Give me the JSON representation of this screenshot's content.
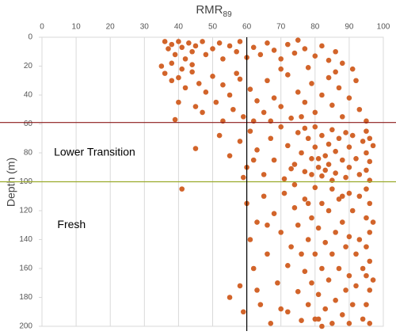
{
  "chart_data": {
    "type": "scatter",
    "title": {
      "main": "RMR",
      "sub": "89"
    },
    "y_label": "Depth (m)",
    "annotations": [
      {
        "text": "Lower Transition",
        "x": 3.5,
        "y": 80
      },
      {
        "text": "Fresh",
        "x": 4.5,
        "y": 130
      }
    ],
    "color": "#d2642a",
    "xlim": [
      0,
      100
    ],
    "xticks": [
      0,
      10,
      20,
      30,
      40,
      50,
      60,
      70,
      80,
      90,
      100
    ],
    "ylim": [
      0,
      200
    ],
    "yticks": [
      0,
      20,
      40,
      60,
      80,
      100,
      120,
      140,
      160,
      180,
      200
    ],
    "y_inverted": true,
    "x_axis_top": true,
    "grid": "x",
    "hlines": [
      {
        "value": 59,
        "color": "#8b1a1a"
      },
      {
        "value": 100,
        "color": "#9aaa2a"
      }
    ],
    "vlines": [
      {
        "value": 60,
        "color": "#000000"
      }
    ],
    "x": [
      36,
      37,
      38,
      39,
      40,
      41,
      42,
      43,
      44,
      45,
      47,
      48,
      50,
      52,
      53,
      55,
      57,
      58,
      60,
      62,
      64,
      66,
      68,
      70,
      72,
      74,
      75,
      77,
      80,
      82,
      84,
      86,
      88,
      35,
      38,
      41,
      44,
      36,
      38,
      40,
      42,
      44,
      46,
      48,
      50,
      51,
      53,
      55,
      56,
      58,
      59,
      61,
      63,
      65,
      66,
      68,
      70,
      72,
      73,
      75,
      77,
      79,
      80,
      82,
      84,
      85,
      87,
      88,
      90,
      92,
      93,
      95,
      39,
      47,
      53,
      62,
      70,
      78,
      86,
      91,
      40,
      45,
      57,
      67,
      76,
      45,
      52,
      55,
      58,
      60,
      61,
      63,
      65,
      67,
      68,
      70,
      71,
      72,
      74,
      75,
      76,
      77,
      78,
      79,
      80,
      80,
      81,
      82,
      82,
      83,
      84,
      84,
      85,
      86,
      86,
      87,
      88,
      89,
      89,
      90,
      90,
      91,
      92,
      93,
      94,
      95,
      95,
      95,
      96,
      96,
      96,
      97,
      81,
      83,
      85,
      79,
      77,
      73,
      62,
      59,
      41,
      55,
      58,
      59,
      60,
      61,
      62,
      63,
      64,
      65,
      66,
      67,
      68,
      69,
      70,
      71,
      72,
      72,
      73,
      74,
      75,
      75,
      76,
      77,
      77,
      78,
      78,
      79,
      79,
      80,
      80,
      80,
      81,
      81,
      82,
      82,
      83,
      83,
      84,
      84,
      85,
      85,
      85,
      86,
      86,
      87,
      87,
      88,
      88,
      89,
      89,
      90,
      90,
      90,
      90,
      91,
      91,
      92,
      92,
      93,
      93,
      94,
      94,
      95,
      95,
      95,
      95,
      95,
      96,
      96,
      96,
      96,
      96,
      97,
      97,
      76,
      74,
      70,
      66,
      63,
      82,
      88,
      78,
      81
    ],
    "y": [
      3,
      8,
      5,
      12,
      3,
      7,
      15,
      4,
      10,
      6,
      3,
      12,
      8,
      4,
      15,
      6,
      10,
      3,
      14,
      7,
      12,
      4,
      9,
      15,
      5,
      11,
      2,
      8,
      13,
      6,
      16,
      10,
      18,
      20,
      18,
      22,
      19,
      25,
      30,
      28,
      35,
      24,
      32,
      38,
      27,
      45,
      33,
      40,
      50,
      29,
      55,
      36,
      44,
      52,
      30,
      42,
      48,
      26,
      56,
      38,
      45,
      32,
      52,
      40,
      28,
      47,
      35,
      55,
      42,
      30,
      50,
      58,
      57,
      52,
      58,
      58,
      22,
      21,
      24,
      22,
      45,
      48,
      25,
      58,
      55,
      77,
      68,
      82,
      72,
      90,
      65,
      78,
      95,
      70,
      85,
      62,
      98,
      75,
      88,
      66,
      80,
      93,
      70,
      84,
      62,
      76,
      90,
      68,
      96,
      82,
      74,
      88,
      64,
      79,
      94,
      70,
      85,
      66,
      97,
      76,
      90,
      68,
      84,
      95,
      72,
      65,
      80,
      92,
      70,
      86,
      99,
      75,
      84,
      92,
      99,
      95,
      63,
      91,
      85,
      97,
      105,
      180,
      172,
      190,
      115,
      140,
      160,
      128,
      185,
      110,
      150,
      198,
      122,
      170,
      135,
      108,
      158,
      190,
      145,
      118,
      176,
      130,
      196,
      112,
      162,
      140,
      185,
      125,
      170,
      104,
      150,
      195,
      132,
      178,
      115,
      160,
      142,
      188,
      120,
      168,
      105,
      150,
      198,
      135,
      182,
      112,
      160,
      128,
      192,
      145,
      175,
      108,
      138,
      165,
      198,
      120,
      185,
      150,
      172,
      110,
      140,
      160,
      195,
      105,
      125,
      145,
      165,
      185,
      115,
      135,
      155,
      175,
      198,
      128,
      168,
      150,
      102,
      188,
      130,
      175,
      200,
      110,
      115,
      195
    ]
  }
}
